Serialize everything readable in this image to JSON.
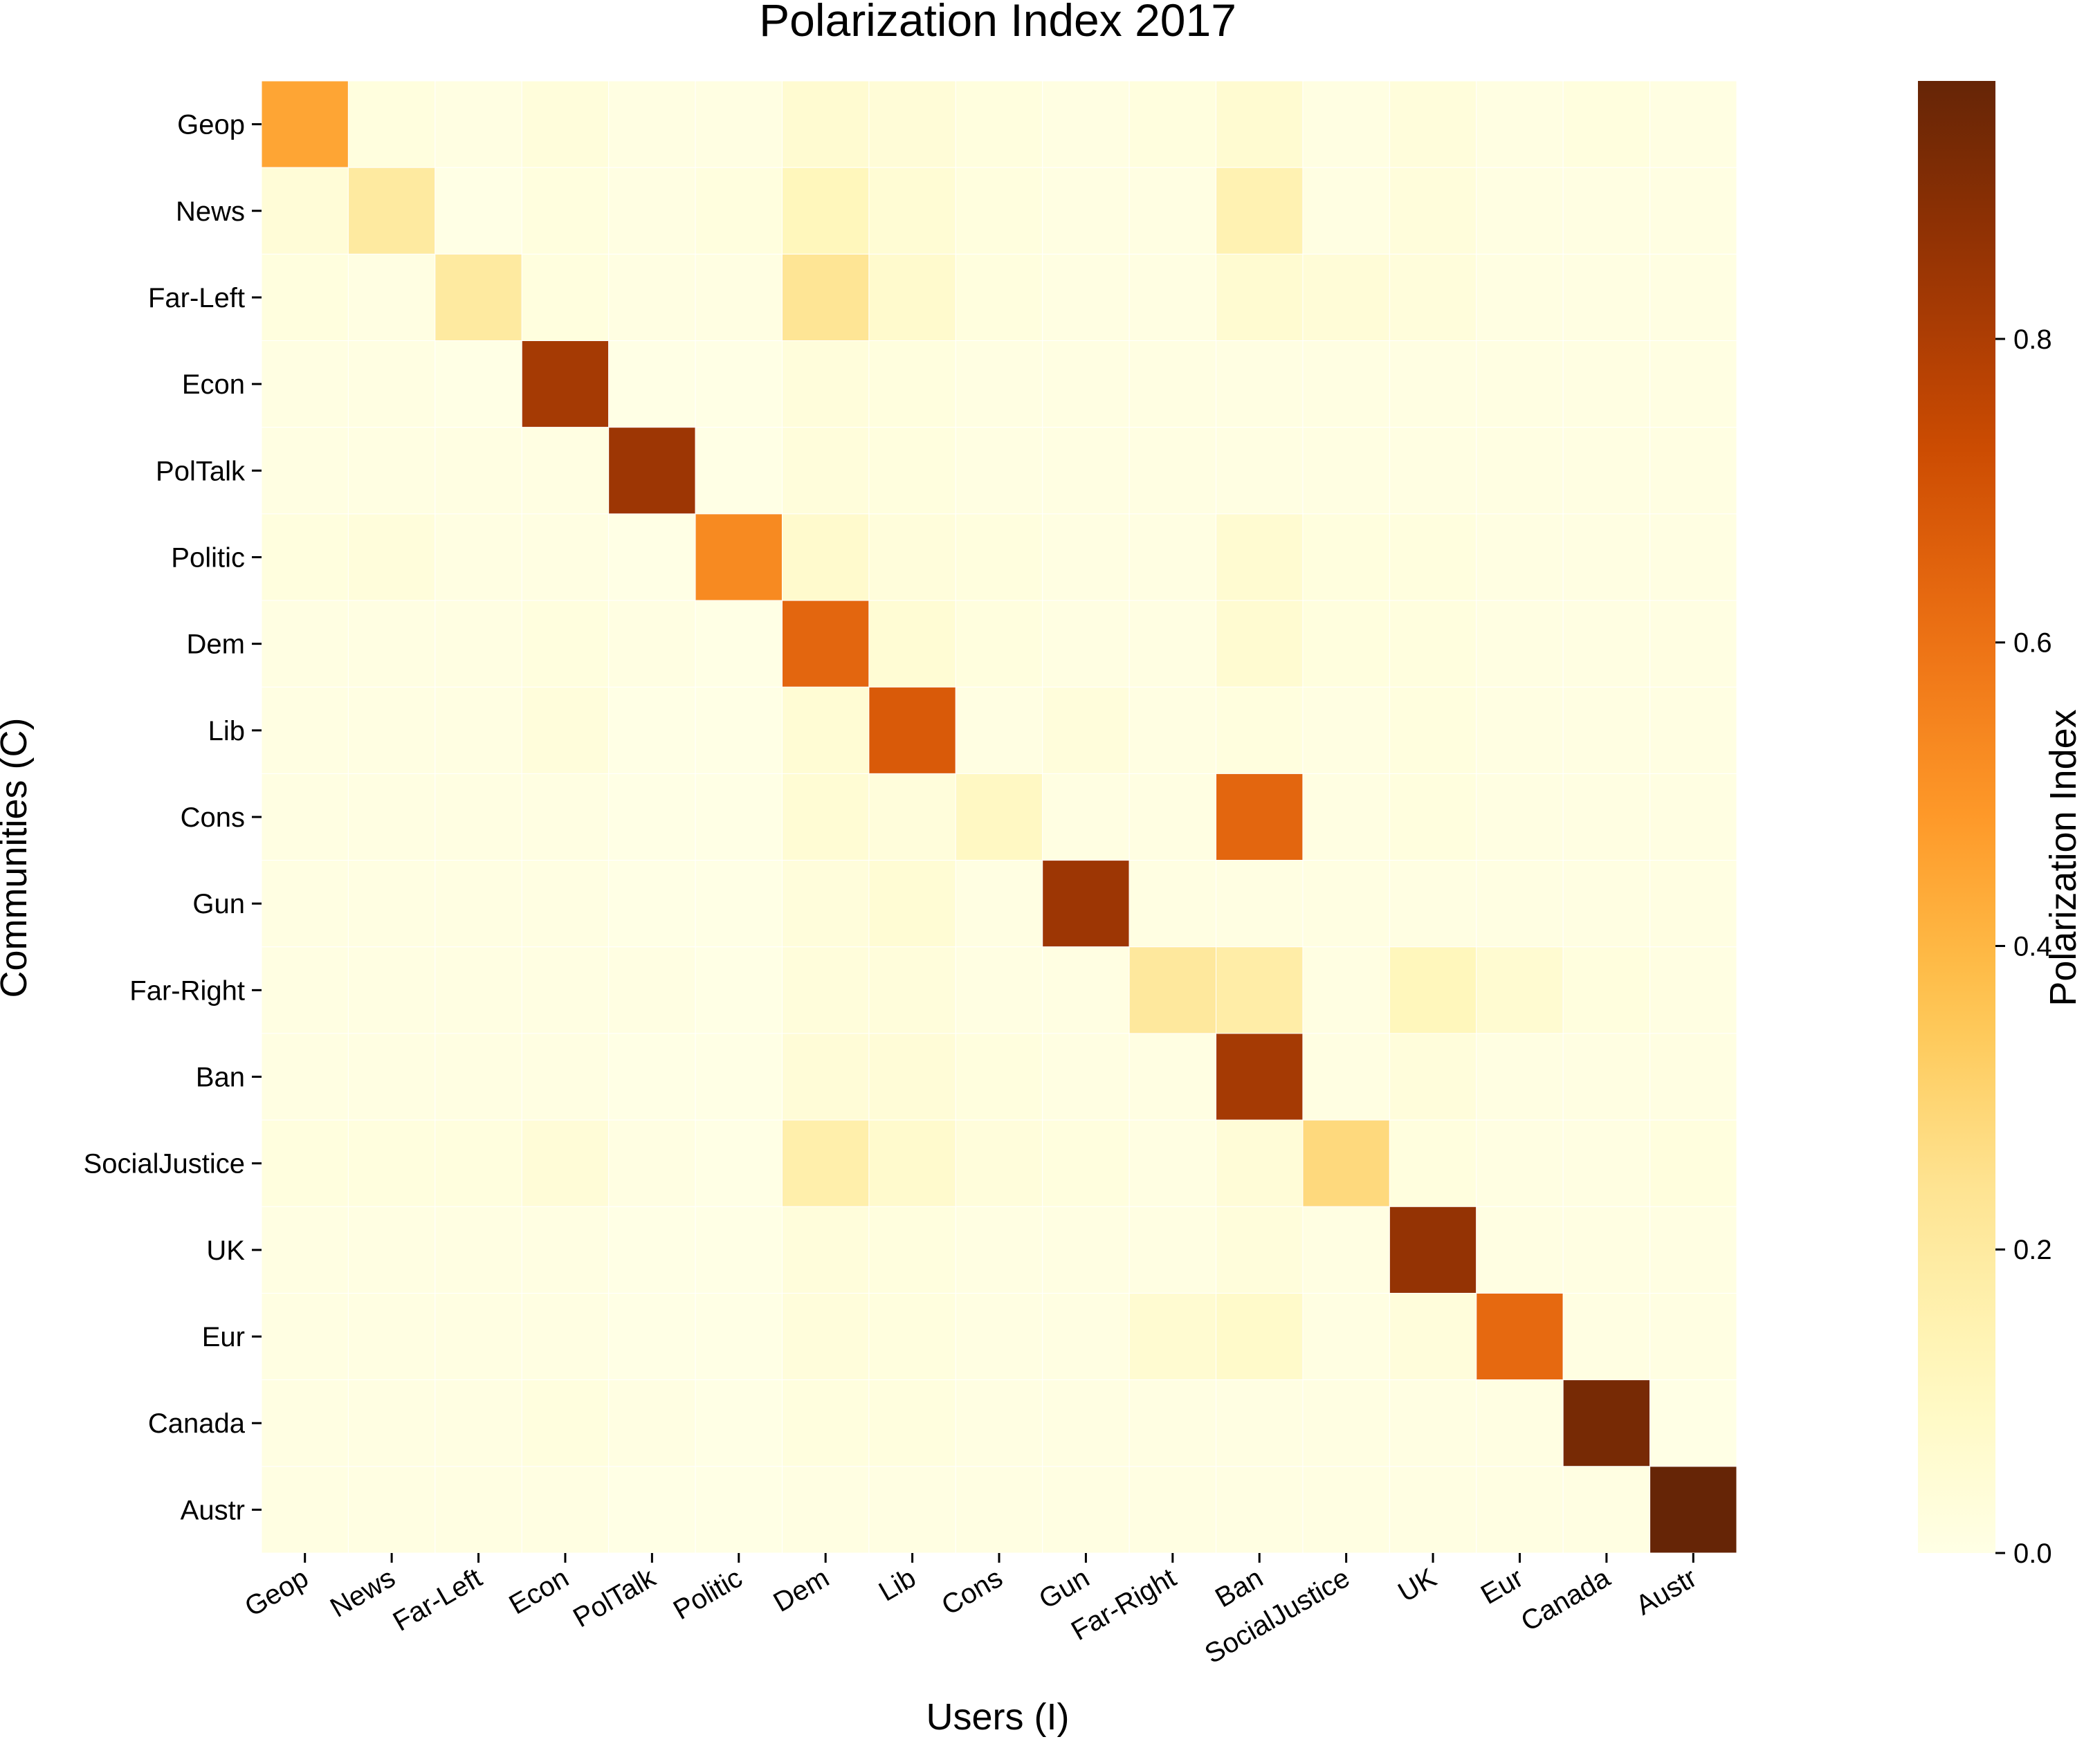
{
  "chart_data": {
    "type": "heatmap",
    "title": "Polarization Index 2017",
    "xlabel": "Users (I)",
    "ylabel": "Communities (C)",
    "colorbar_label": "Polarization Index",
    "colorbar_ticks": [
      "0.0",
      "0.2",
      "0.4",
      "0.6",
      "0.8"
    ],
    "colorbar_range": [
      0,
      0.97
    ],
    "colormap": "YlOrBr",
    "x_categories": [
      "Geop",
      "News",
      "Far-Left",
      "Econ",
      "PolTalk",
      "Politic",
      "Dem",
      "Lib",
      "Cons",
      "Gun",
      "Far-Right",
      "Ban",
      "SocialJustice",
      "UK",
      "Eur",
      "Canada",
      "Austr"
    ],
    "y_categories": [
      "Geop",
      "News",
      "Far-Left",
      "Econ",
      "PolTalk",
      "Politic",
      "Dem",
      "Lib",
      "Cons",
      "Gun",
      "Far-Right",
      "Ban",
      "SocialJustice",
      "UK",
      "Eur",
      "Canada",
      "Austr"
    ],
    "values": [
      [
        0.45,
        0.02,
        0.01,
        0.03,
        0.01,
        0.01,
        0.06,
        0.04,
        0.02,
        0.01,
        0.02,
        0.06,
        0.01,
        0.03,
        0.01,
        0.02,
        0.01
      ],
      [
        0.04,
        0.2,
        0.0,
        0.02,
        0.01,
        0.02,
        0.12,
        0.05,
        0.02,
        0.01,
        0.01,
        0.15,
        0.01,
        0.03,
        0.01,
        0.01,
        0.01
      ],
      [
        0.02,
        0.01,
        0.2,
        0.02,
        0.01,
        0.01,
        0.23,
        0.07,
        0.02,
        0.01,
        0.01,
        0.06,
        0.04,
        0.03,
        0.01,
        0.01,
        0.01
      ],
      [
        0.01,
        0.01,
        0.0,
        0.82,
        0.0,
        0.0,
        0.03,
        0.02,
        0.01,
        0.01,
        0.01,
        0.01,
        0.01,
        0.01,
        0.01,
        0.01,
        0.01
      ],
      [
        0.01,
        0.01,
        0.01,
        0.01,
        0.84,
        0.0,
        0.03,
        0.02,
        0.01,
        0.01,
        0.01,
        0.01,
        0.01,
        0.01,
        0.01,
        0.01,
        0.01
      ],
      [
        0.02,
        0.03,
        0.01,
        0.01,
        0.0,
        0.53,
        0.07,
        0.03,
        0.02,
        0.01,
        0.01,
        0.06,
        0.02,
        0.02,
        0.01,
        0.01,
        0.01
      ],
      [
        0.01,
        0.01,
        0.01,
        0.02,
        0.01,
        0.0,
        0.64,
        0.05,
        0.02,
        0.01,
        0.01,
        0.06,
        0.02,
        0.02,
        0.01,
        0.01,
        0.01
      ],
      [
        0.01,
        0.01,
        0.01,
        0.03,
        0.0,
        0.0,
        0.05,
        0.68,
        0.01,
        0.03,
        0.01,
        0.02,
        0.01,
        0.02,
        0.01,
        0.01,
        0.01
      ],
      [
        0.01,
        0.01,
        0.01,
        0.01,
        0.0,
        0.0,
        0.05,
        0.03,
        0.1,
        0.01,
        0.01,
        0.64,
        0.01,
        0.02,
        0.01,
        0.01,
        0.01
      ],
      [
        0.01,
        0.01,
        0.01,
        0.01,
        0.0,
        0.0,
        0.03,
        0.05,
        0.01,
        0.84,
        0.01,
        0.01,
        0.01,
        0.01,
        0.01,
        0.01,
        0.01
      ],
      [
        0.01,
        0.01,
        0.01,
        0.01,
        0.01,
        0.0,
        0.03,
        0.03,
        0.01,
        0.01,
        0.21,
        0.18,
        0.01,
        0.12,
        0.06,
        0.02,
        0.01
      ],
      [
        0.01,
        0.01,
        0.01,
        0.01,
        0.0,
        0.0,
        0.04,
        0.04,
        0.02,
        0.01,
        0.01,
        0.82,
        0.01,
        0.03,
        0.01,
        0.01,
        0.01
      ],
      [
        0.02,
        0.02,
        0.02,
        0.04,
        0.01,
        0.0,
        0.17,
        0.07,
        0.03,
        0.02,
        0.01,
        0.04,
        0.28,
        0.02,
        0.01,
        0.01,
        0.02
      ],
      [
        0.01,
        0.01,
        0.01,
        0.01,
        0.0,
        0.0,
        0.03,
        0.02,
        0.01,
        0.01,
        0.01,
        0.03,
        0.01,
        0.86,
        0.01,
        0.01,
        0.01
      ],
      [
        0.01,
        0.01,
        0.01,
        0.01,
        0.0,
        0.0,
        0.03,
        0.02,
        0.01,
        0.01,
        0.06,
        0.08,
        0.01,
        0.03,
        0.63,
        0.01,
        0.01
      ],
      [
        0.01,
        0.01,
        0.01,
        0.02,
        0.01,
        0.0,
        0.02,
        0.02,
        0.01,
        0.01,
        0.01,
        0.01,
        0.01,
        0.01,
        0.01,
        0.93,
        0.0
      ],
      [
        0.01,
        0.01,
        0.01,
        0.01,
        0.0,
        0.0,
        0.01,
        0.01,
        0.01,
        0.01,
        0.01,
        0.01,
        0.01,
        0.01,
        0.01,
        0.01,
        0.97
      ]
    ]
  }
}
